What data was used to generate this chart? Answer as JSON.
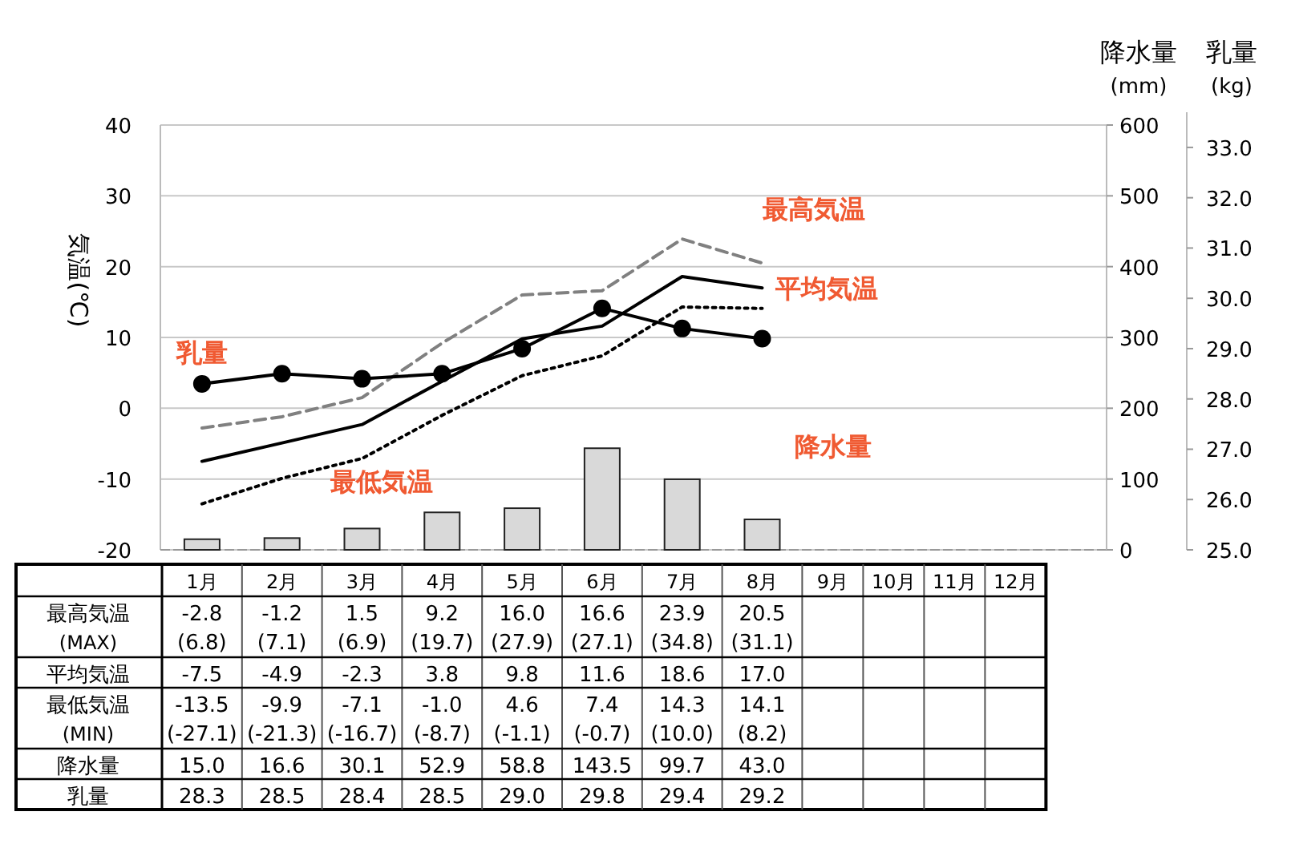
{
  "chart_data": {
    "type": "line",
    "categories": [
      "1月",
      "2月",
      "3月",
      "4月",
      "5月",
      "6月",
      "7月",
      "8月",
      "9月",
      "10月",
      "11月",
      "12月"
    ],
    "ylabel": "気温(℃)",
    "y2label": "降水量 (mm)",
    "y3label": "乳量 (kg)",
    "ylim": [
      -20,
      40
    ],
    "yticks": [
      -20,
      -10,
      0,
      10,
      20,
      30,
      40
    ],
    "y2lim": [
      0,
      600
    ],
    "y2ticks": [
      0,
      100,
      200,
      300,
      400,
      500,
      600
    ],
    "y3lim": [
      25,
      33.7
    ],
    "y3ticks": [
      {
        "value": 25,
        "label": "25.0"
      },
      {
        "value": 26,
        "label": "26.0"
      },
      {
        "value": 27,
        "label": "27.0"
      },
      {
        "value": 28,
        "label": "28.0"
      },
      {
        "value": 29,
        "label": "29.0"
      },
      {
        "value": 30,
        "label": "30.0"
      },
      {
        "value": 31,
        "label": "31.0"
      },
      {
        "value": 32,
        "label": "32.0"
      },
      {
        "value": 33,
        "label": "33.0"
      }
    ],
    "grid": "y",
    "annotations": [
      "(MAX)",
      "(MIN)"
    ],
    "series": [
      {
        "name": "最高気温",
        "color": "#808080",
        "line_style": "dashed",
        "values": [
          -2.8,
          -1.2,
          1.5,
          9.2,
          16.0,
          16.6,
          23.9,
          20.5,
          null,
          null,
          null,
          null
        ],
        "value_labels": [
          "-2.8 (6.8)",
          "-1.2 (7.1)",
          "1.5 (6.9)",
          "9.2 (19.7)",
          "16.0 (27.9)",
          "16.6 (27.1)",
          "23.9 (34.8)",
          "20.5 (31.1)",
          null,
          null,
          null,
          null
        ]
      },
      {
        "name": "平均気温",
        "color": "#000000",
        "line_style": "solid",
        "values": [
          -7.5,
          -4.9,
          -2.3,
          3.8,
          9.8,
          11.6,
          18.6,
          17.0,
          null,
          null,
          null,
          null
        ],
        "value_labels": [
          "-7.5",
          "-4.9",
          "-2.3",
          "3.8",
          "9.8",
          "11.6",
          "18.6",
          "17.0",
          null,
          null,
          null,
          null
        ]
      },
      {
        "name": "最低気温",
        "color": "#000000",
        "line_style": "dotted",
        "values": [
          -13.5,
          -9.9,
          -7.1,
          -1.0,
          4.6,
          7.4,
          14.3,
          14.1,
          null,
          null,
          null,
          null
        ],
        "value_labels": [
          "-13.5 (-27.1)",
          "-9.9 (-21.3)",
          "-7.1 (-16.7)",
          "-1.0 (-8.7)",
          "4.6 (-1.1)",
          "7.4 (-0.7)",
          "14.3 (10.0)",
          "14.1 (8.2)",
          null,
          null,
          null,
          null
        ]
      },
      {
        "name": "降水量",
        "type": "bar",
        "axis": "y2",
        "color": "#d9d9d9",
        "values": [
          15.0,
          16.6,
          30.1,
          52.9,
          58.8,
          143.5,
          99.7,
          43.0,
          null,
          null,
          null,
          null
        ],
        "value_labels": [
          "15.0",
          "16.6",
          "30.1",
          "52.9",
          "58.8",
          "143.5",
          "99.7",
          "43.0",
          null,
          null,
          null,
          null
        ]
      },
      {
        "name": "乳量",
        "axis": "y3",
        "color": "#000000",
        "marker": "circle",
        "line_style": "solid",
        "values": [
          28.3,
          28.5,
          28.4,
          28.5,
          29.0,
          29.8,
          29.4,
          29.2,
          null,
          null,
          null,
          null
        ],
        "value_labels": [
          "28.3",
          "28.5",
          "28.4",
          "28.5",
          "29.0",
          "29.8",
          "29.4",
          "29.2",
          null,
          null,
          null,
          null
        ]
      }
    ]
  }
}
